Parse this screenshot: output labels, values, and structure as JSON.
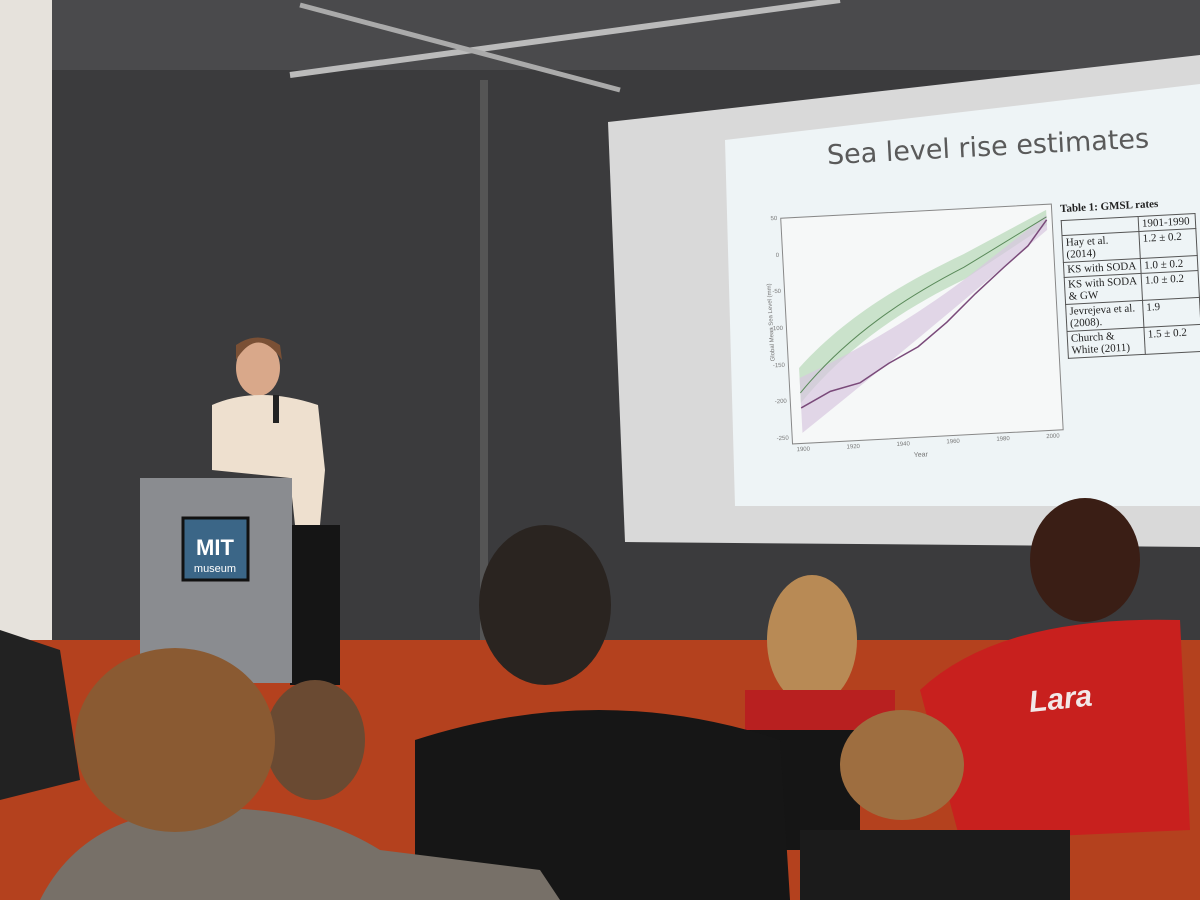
{
  "slide": {
    "title": "Sea level rise estimates",
    "chart": {
      "y_label": "Global Mean Sea Level (mm)",
      "x_label": "Year",
      "y_ticks": [
        50,
        0,
        -50,
        -100,
        -150,
        -200,
        -250
      ],
      "x_ticks": [
        1900,
        1920,
        1940,
        1960,
        1980,
        2000
      ]
    },
    "table": {
      "caption": "Table 1: GMSL rates",
      "header": [
        "1901-1990"
      ],
      "rows": [
        [
          "Hay et al. (2014)",
          "1.2 ± 0.2"
        ],
        [
          "KS with SODA",
          "1.0 ± 0.2"
        ],
        [
          "KS with SODA & GW",
          "1.0 ± 0.2"
        ],
        [
          "Jevrejeva et al. (2008).",
          "1.9"
        ],
        [
          "Church & White (2011)",
          "1.5 ± 0.2"
        ]
      ]
    }
  },
  "podium": {
    "logo_line1": "MIT",
    "logo_line2": "museum"
  },
  "shirt": {
    "text": "Lara"
  }
}
